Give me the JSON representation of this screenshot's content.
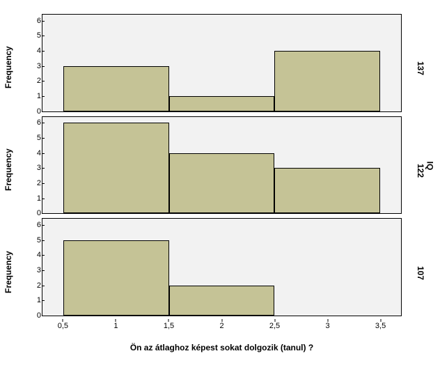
{
  "chart": {
    "type": "histogram-panels",
    "background_color": "#ffffff",
    "panel_background": "#f2f2f2",
    "bar_color": "#c5c396",
    "bar_border_color": "#000000",
    "panel_border_color": "#000000",
    "x_axis_label": "Ön az átlaghoz képest sokat dolgozik (tanul) ?",
    "y_axis_label": "Frequency",
    "group_label": "IQ",
    "x_domain": [
      0.3,
      3.7
    ],
    "x_ticks": [
      0.5,
      1,
      1.5,
      2,
      2.5,
      3,
      3.5
    ],
    "x_tick_labels": [
      "0,5",
      "1",
      "1,5",
      "2",
      "2,5",
      "3",
      "3,5"
    ],
    "y_domain": [
      0,
      6.4
    ],
    "y_ticks": [
      0,
      1,
      2,
      3,
      4,
      5,
      6
    ],
    "panels": [
      {
        "group_value": "137",
        "bars": [
          {
            "x_start": 0.5,
            "x_end": 1.5,
            "value": 3
          },
          {
            "x_start": 1.5,
            "x_end": 2.5,
            "value": 1
          },
          {
            "x_start": 2.5,
            "x_end": 3.5,
            "value": 4
          }
        ]
      },
      {
        "group_value": "122",
        "bars": [
          {
            "x_start": 0.5,
            "x_end": 1.5,
            "value": 6
          },
          {
            "x_start": 1.5,
            "x_end": 2.5,
            "value": 4
          },
          {
            "x_start": 2.5,
            "x_end": 3.5,
            "value": 3
          }
        ]
      },
      {
        "group_value": "107",
        "bars": [
          {
            "x_start": 0.5,
            "x_end": 1.5,
            "value": 5
          },
          {
            "x_start": 1.5,
            "x_end": 2.5,
            "value": 2
          }
        ]
      }
    ],
    "label_fontsize": 12,
    "tick_fontsize": 11
  }
}
